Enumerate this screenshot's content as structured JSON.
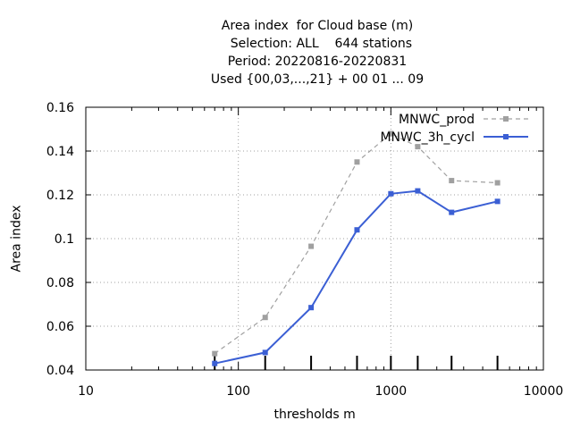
{
  "chart_data": {
    "type": "line",
    "title": [
      "Area index  for Cloud base (m)",
      "  Selection: ALL    644 stations",
      "Period: 20220816-20220831",
      "Used {00,03,...,21} + 00 01 ... 09"
    ],
    "xlabel": "thresholds m",
    "ylabel": "Area index",
    "x_scale": "log",
    "xlim": [
      10,
      10000
    ],
    "ylim": [
      0.04,
      0.16
    ],
    "x_ticks": [
      10,
      100,
      1000,
      10000
    ],
    "x_tick_labels": [
      "10",
      "100",
      "1000",
      "10000"
    ],
    "y_ticks": [
      0.04,
      0.06,
      0.08,
      0.1,
      0.12,
      0.14,
      0.16
    ],
    "y_tick_labels": [
      "0.04",
      "0.06",
      "0.08",
      "0.1",
      "0.12",
      "0.14",
      "0.16"
    ],
    "grid": true,
    "legend_position": "top-right",
    "threshold_markers": [
      70,
      150,
      300,
      600,
      1000,
      1500,
      2500,
      5000
    ],
    "series": [
      {
        "name": "MNWC_prod",
        "color": "#a0a0a0",
        "style": "dashed",
        "x": [
          70,
          150,
          300,
          600,
          1000,
          1500,
          2500,
          5000
        ],
        "y": [
          0.0475,
          0.064,
          0.0965,
          0.135,
          0.148,
          0.142,
          0.1265,
          0.1255
        ]
      },
      {
        "name": "MNWC_3h_cycl",
        "color": "#3b5fd4",
        "style": "solid",
        "x": [
          70,
          150,
          300,
          600,
          1000,
          1500,
          2500,
          5000
        ],
        "y": [
          0.043,
          0.048,
          0.0685,
          0.104,
          0.1205,
          0.1218,
          0.112,
          0.117
        ]
      }
    ]
  }
}
